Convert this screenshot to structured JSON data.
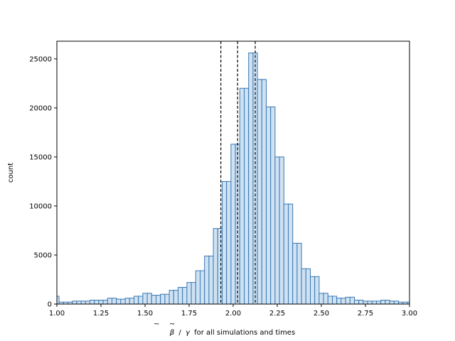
{
  "chart_data": {
    "type": "bar",
    "title": "",
    "xlabel_parts": {
      "beta_symbol": "β",
      "tilde": "~",
      "gamma_symbol": "γ",
      "separator": "/",
      "suffix": "for all simulations and times"
    },
    "ylabel": "count",
    "xlim": [
      1.0,
      3.0
    ],
    "ylim": [
      0,
      26800
    ],
    "x_ticks": [
      1.0,
      1.25,
      1.5,
      1.75,
      2.0,
      2.25,
      2.5,
      2.75,
      3.0
    ],
    "x_tick_labels": [
      "1.00",
      "1.25",
      "1.50",
      "1.75",
      "2.00",
      "2.25",
      "2.50",
      "2.75",
      "3.00"
    ],
    "y_ticks": [
      0,
      5000,
      10000,
      15000,
      20000,
      25000
    ],
    "y_tick_labels": [
      "0",
      "5000",
      "10000",
      "15000",
      "20000",
      "25000"
    ],
    "bin_edges": [
      1.0,
      1.0125,
      1.0375,
      1.0625,
      1.0875,
      1.1125,
      1.1375,
      1.1625,
      1.1875,
      1.2125,
      1.2375,
      1.2625,
      1.2875,
      1.3125,
      1.3375,
      1.3625,
      1.3875,
      1.4125,
      1.4375,
      1.4625,
      1.4875,
      1.5125,
      1.5375,
      1.5625,
      1.5875,
      1.6125,
      1.6375,
      1.6625,
      1.6875,
      1.7125,
      1.7375,
      1.7625,
      1.7875,
      1.8125,
      1.8375,
      1.8625,
      1.8875,
      1.9125,
      1.9375,
      1.9625,
      1.9875,
      2.0125,
      2.0375,
      2.0625,
      2.0875,
      2.1125,
      2.1375,
      2.1625,
      2.1875,
      2.2125,
      2.2375,
      2.2625,
      2.2875,
      2.3125,
      2.3375,
      2.3625,
      2.3875,
      2.4125,
      2.4375,
      2.4625,
      2.4875,
      2.5125,
      2.5375,
      2.5625,
      2.5875,
      2.6125,
      2.6375,
      2.6625,
      2.6875,
      2.7125,
      2.7375,
      2.7625,
      2.7875,
      2.8125,
      2.8375,
      2.8625,
      2.8875,
      2.9125,
      2.9375,
      2.9625,
      2.9875,
      3.0
    ],
    "values": [
      800,
      200,
      200,
      200,
      300,
      300,
      300,
      300,
      400,
      400,
      400,
      400,
      600,
      600,
      500,
      500,
      600,
      600,
      800,
      800,
      1100,
      1100,
      900,
      900,
      1000,
      1000,
      1400,
      1400,
      1700,
      1700,
      2200,
      2200,
      3400,
      3400,
      4900,
      4900,
      7700,
      7700,
      12500,
      12500,
      16300,
      16300,
      22000,
      22000,
      25600,
      25600,
      22900,
      22900,
      20100,
      20100,
      15000,
      15000,
      10200,
      10200,
      6200,
      6200,
      3600,
      3600,
      2800,
      2800,
      1100,
      1100,
      800,
      800,
      600,
      600,
      700,
      700,
      400,
      400,
      300,
      300,
      300,
      300,
      400,
      400,
      300,
      300,
      200,
      200,
      200
    ],
    "vlines": [
      1.93,
      2.025,
      2.125
    ],
    "colors": {
      "bar_fill": "#cfe2f3",
      "bar_edge": "#3a78b0",
      "vline": "#000000"
    },
    "grid": false,
    "legend": "none"
  }
}
